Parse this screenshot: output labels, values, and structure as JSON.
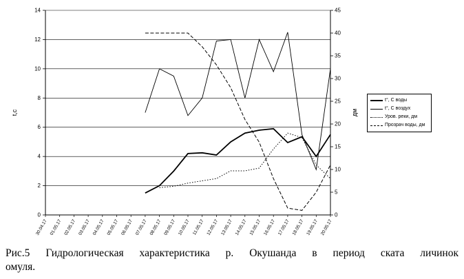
{
  "caption": {
    "line1": "Рис.5 Гидрологическая характеристика р. Окушанда в период ската личинок",
    "line2": "омуля."
  },
  "chart_data": {
    "type": "line",
    "title": "",
    "xlabel": "",
    "ylabel_left": "t,c",
    "ylabel_right": "дм",
    "grid": true,
    "legend_position": "right",
    "axes": {
      "left": {
        "min": 0,
        "max": 14,
        "step": 2
      },
      "right": {
        "min": 0,
        "max": 45,
        "step": 5
      }
    },
    "categories": [
      "30.04.17",
      "01.05.17",
      "02.05.17",
      "03.05.17",
      "04.05.17",
      "05.05.17",
      "06.05.17",
      "07.05.17",
      "08.05.17",
      "09.05.17",
      "10.05.17",
      "11.05.17",
      "12.05.17",
      "13.05.17",
      "14.05.17",
      "15.05.17",
      "16.05.17",
      "17.05.17",
      "18.05.17",
      "19.05.17",
      "20.05.17"
    ],
    "series": [
      {
        "name": "t°, С  воды",
        "axis": "left",
        "style": "solid-thick",
        "color": "#000000",
        "values": [
          null,
          null,
          null,
          null,
          null,
          null,
          null,
          1.5,
          2.0,
          3.0,
          4.2,
          4.25,
          4.1,
          5.0,
          5.6,
          5.8,
          5.9,
          4.95,
          5.35,
          4.0,
          5.5
        ]
      },
      {
        "name": "t°, С  воздух",
        "axis": "left",
        "style": "solid-thin",
        "color": "#000000",
        "values": [
          null,
          null,
          null,
          null,
          null,
          null,
          null,
          7.0,
          10.0,
          9.5,
          6.8,
          8.0,
          11.9,
          12.0,
          8.0,
          12.0,
          9.8,
          12.5,
          5.5,
          3.1,
          10.0
        ]
      },
      {
        "name": "Уров. реки, дм",
        "axis": "right",
        "style": "dotted",
        "color": "#000000",
        "values": [
          null,
          null,
          null,
          null,
          null,
          null,
          null,
          null,
          6,
          6.3,
          7,
          7.5,
          8,
          9.7,
          9.7,
          10.3,
          14.5,
          18,
          17,
          11,
          8
        ]
      },
      {
        "name": "Прозрач воды, дм",
        "axis": "right",
        "style": "dashed",
        "color": "#000000",
        "values": [
          null,
          null,
          null,
          null,
          null,
          null,
          null,
          40,
          40,
          40,
          40,
          37,
          33,
          28,
          21,
          16,
          8,
          1.5,
          1,
          5,
          11
        ]
      }
    ]
  }
}
